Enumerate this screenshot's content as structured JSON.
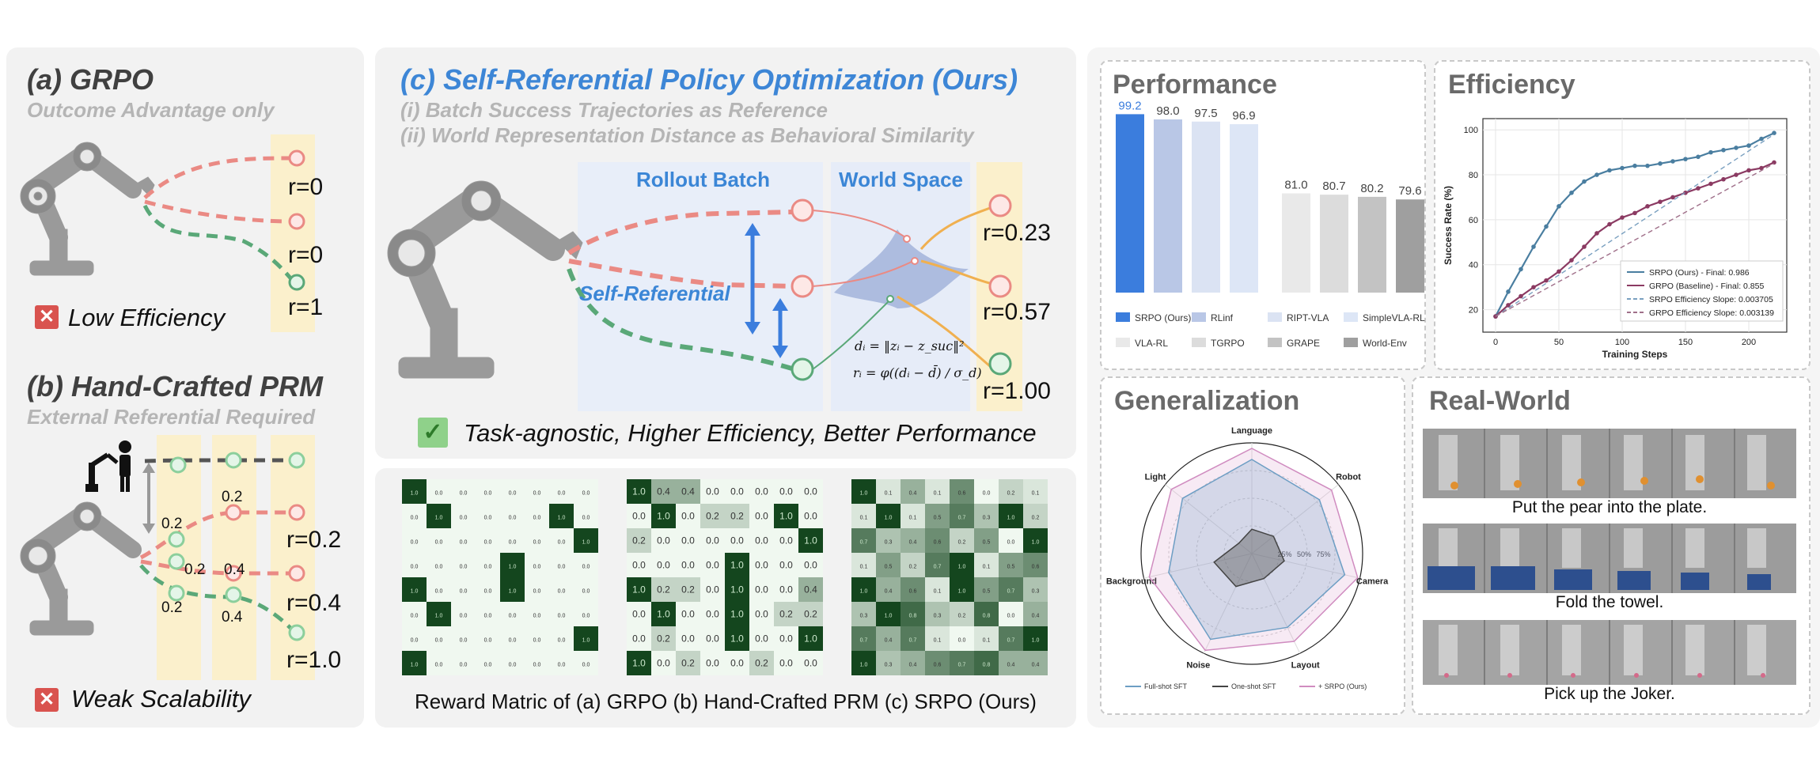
{
  "grpo": {
    "title": "(a) GRPO",
    "subtitle": "Outcome Advantage only",
    "rewards": [
      "r=0",
      "r=0",
      "r=1"
    ],
    "verdict": "Low Efficiency",
    "verdict_icon": "cross-icon"
  },
  "prm": {
    "title": "(b) Hand-Crafted PRM",
    "subtitle": "External Referential Required",
    "step_rewards": [
      "0.2",
      "0.2",
      "0.2",
      "0.4",
      "0.2",
      "0.4"
    ],
    "rewards": [
      "r=0.2",
      "r=0.4",
      "r=1.0"
    ],
    "verdict": "Weak Scalability",
    "verdict_icon": "cross-icon"
  },
  "srpo": {
    "title": "(c) Self-Referential Policy Optimization (Ours)",
    "point1": "(i) Batch Success Trajectories as Reference",
    "point2": "(ii) World Representation Distance as Behavioral Similarity",
    "rollout_label": "Rollout Batch",
    "world_label": "World Space",
    "self_ref_label": "Self-Referential",
    "rewards": [
      "r=0.23",
      "r=0.57",
      "r=1.00"
    ],
    "conclusion": "Task-agnostic, Higher Efficiency, Better Performance",
    "conclusion_icon": "check-icon",
    "formula_line1": "dᵢ = ‖zᵢ − z_suc‖²",
    "formula_line2": "rᵢ = φ((dᵢ − d̄) / σ_d)"
  },
  "matrices": {
    "caption": "Reward Matric of (a) GRPO (b) Hand-Crafted PRM (c) SRPO (Ours)",
    "grpo": [
      [
        "1.0",
        "0.0",
        "0.0",
        "0.0",
        "0.0",
        "0.0",
        "0.0",
        "0.0"
      ],
      [
        "0.0",
        "1.0",
        "0.0",
        "0.0",
        "0.0",
        "0.0",
        "1.0",
        "0.0"
      ],
      [
        "0.0",
        "0.0",
        "0.0",
        "0.0",
        "0.0",
        "0.0",
        "0.0",
        "1.0"
      ],
      [
        "0.0",
        "0.0",
        "0.0",
        "0.0",
        "1.0",
        "0.0",
        "0.0",
        "0.0"
      ],
      [
        "1.0",
        "0.0",
        "0.0",
        "0.0",
        "1.0",
        "0.0",
        "0.0",
        "0.0"
      ],
      [
        "0.0",
        "1.0",
        "0.0",
        "0.0",
        "0.0",
        "0.0",
        "0.0",
        "0.0"
      ],
      [
        "0.0",
        "0.0",
        "0.0",
        "0.0",
        "0.0",
        "0.0",
        "0.0",
        "1.0"
      ],
      [
        "1.0",
        "0.0",
        "0.0",
        "0.0",
        "0.0",
        "0.0",
        "0.0",
        "0.0"
      ]
    ],
    "prm": [
      [
        "1.0",
        "0.4",
        "0.4",
        "0.0",
        "0.0",
        "0.0",
        "0.0",
        "0.0"
      ],
      [
        "0.0",
        "1.0",
        "0.0",
        "0.2",
        "0.2",
        "0.0",
        "1.0",
        "0.0"
      ],
      [
        "0.2",
        "0.0",
        "0.0",
        "0.0",
        "0.0",
        "0.0",
        "0.0",
        "1.0"
      ],
      [
        "0.0",
        "0.0",
        "0.0",
        "0.0",
        "1.0",
        "0.0",
        "0.0",
        "0.0"
      ],
      [
        "1.0",
        "0.2",
        "0.2",
        "0.0",
        "1.0",
        "0.0",
        "0.0",
        "0.4"
      ],
      [
        "0.0",
        "1.0",
        "0.0",
        "0.0",
        "1.0",
        "0.0",
        "0.2",
        "0.2"
      ],
      [
        "0.0",
        "0.2",
        "0.0",
        "0.0",
        "1.0",
        "0.0",
        "0.0",
        "1.0"
      ],
      [
        "1.0",
        "0.0",
        "0.2",
        "0.0",
        "0.0",
        "0.2",
        "0.0",
        "0.0"
      ]
    ],
    "srpo": [
      [
        "1.0",
        "0.1",
        "0.4",
        "0.1",
        "0.6",
        "0.0",
        "0.2",
        "0.1"
      ],
      [
        "0.1",
        "1.0",
        "0.1",
        "0.5",
        "0.7",
        "0.3",
        "1.0",
        "0.2"
      ],
      [
        "0.7",
        "0.3",
        "0.4",
        "0.6",
        "0.2",
        "0.5",
        "0.0",
        "1.0"
      ],
      [
        "0.1",
        "0.5",
        "0.2",
        "0.7",
        "1.0",
        "0.1",
        "0.5",
        "0.6"
      ],
      [
        "1.0",
        "0.4",
        "0.6",
        "0.1",
        "1.0",
        "0.5",
        "0.7",
        "0.3"
      ],
      [
        "0.3",
        "1.0",
        "0.8",
        "0.3",
        "0.2",
        "0.8",
        "0.0",
        "0.4"
      ],
      [
        "0.7",
        "0.4",
        "0.7",
        "0.1",
        "0.0",
        "0.1",
        "0.7",
        "1.0"
      ],
      [
        "1.0",
        "0.3",
        "0.4",
        "0.6",
        "0.7",
        "0.8",
        "0.4",
        "0.4"
      ]
    ]
  },
  "performance": {
    "title": "Performance",
    "chart_data": {
      "type": "bar",
      "categories": [
        "SRPO (Ours)",
        "RLinf",
        "RIPT-VLA",
        "SimpleVLA-RL",
        "VLA-RL",
        "TGRPO",
        "GRAPE",
        "World-Env"
      ],
      "values": [
        99.2,
        98.0,
        97.5,
        96.9,
        81.0,
        80.7,
        80.2,
        79.6
      ],
      "value_labels": [
        "99.2",
        "98.0",
        "97.5",
        "96.9",
        "81.0",
        "80.7",
        "80.2",
        "79.6"
      ],
      "colors": [
        "#3b7ddd",
        "#b9c7e6",
        "#dbe3f3",
        "#dde6f6",
        "#e9e9e9",
        "#dcdcdc",
        "#c3c3c3",
        "#9f9f9f"
      ],
      "ylim": [
        60,
        100
      ],
      "legend": [
        "SRPO (Ours)",
        "RLinf",
        "RIPT-VLA",
        "SimpleVLA-RL",
        "VLA-RL",
        "TGRPO",
        "GRAPE",
        "World-Env"
      ]
    }
  },
  "efficiency": {
    "title": "Efficiency",
    "chart_data": {
      "type": "line",
      "xlabel": "Training Steps",
      "ylabel": "Success Rate (%)",
      "xlim": [
        -10,
        230
      ],
      "ylim": [
        10,
        105
      ],
      "xticks": [
        "0",
        "50",
        "100",
        "150",
        "200"
      ],
      "yticks": [
        "20",
        "40",
        "60",
        "80",
        "100"
      ],
      "series": [
        {
          "name": "SRPO (Ours) - Final: 0.986",
          "color": "#4a7ea0",
          "x": [
            0,
            10,
            20,
            30,
            40,
            50,
            60,
            70,
            80,
            90,
            100,
            110,
            120,
            130,
            140,
            150,
            160,
            170,
            180,
            190,
            200,
            210,
            220
          ],
          "y": [
            17,
            28,
            38,
            48,
            57,
            66,
            72,
            77,
            80,
            82,
            83,
            84,
            84,
            85,
            86,
            87,
            88,
            90,
            91,
            92,
            93,
            96,
            98.6
          ]
        },
        {
          "name": "GRPO (Baseline) - Final: 0.855",
          "color": "#8b3a62",
          "x": [
            0,
            10,
            20,
            30,
            40,
            50,
            60,
            70,
            80,
            90,
            100,
            110,
            120,
            130,
            140,
            150,
            160,
            170,
            180,
            190,
            200,
            210,
            220
          ],
          "y": [
            17,
            22,
            26,
            30,
            33,
            37,
            42,
            48,
            54,
            58,
            61,
            63,
            66,
            68,
            70,
            72,
            74,
            76,
            78,
            80,
            82,
            83,
            85.5
          ]
        },
        {
          "name": "SRPO Efficiency Slope: 0.003705",
          "color": "#7aa0c0",
          "dashed": true,
          "x": [
            0,
            220
          ],
          "y": [
            17,
            98
          ]
        },
        {
          "name": "GRPO Efficiency Slope: 0.003139",
          "color": "#a0708a",
          "dashed": true,
          "x": [
            0,
            220
          ],
          "y": [
            17,
            85
          ]
        }
      ]
    }
  },
  "generalization": {
    "title": "Generalization",
    "chart_data": {
      "type": "radar",
      "axes": [
        "Language",
        "Robot",
        "Camera",
        "Layout",
        "Noise",
        "Background",
        "Light"
      ],
      "rings": [
        "25%",
        "50%",
        "75%"
      ],
      "series": [
        {
          "name": "Full-shot SFT",
          "color": "#6d9ec4",
          "values": [
            0.85,
            0.78,
            0.86,
            0.74,
            0.86,
            0.77,
            0.8
          ]
        },
        {
          "name": "One-shot SFT",
          "color": "#444444",
          "values": [
            0.22,
            0.25,
            0.3,
            0.25,
            0.33,
            0.35,
            0.15
          ]
        },
        {
          "name": "+ SRPO (Ours)",
          "color": "#d08cc0",
          "values": [
            0.95,
            0.92,
            0.98,
            0.88,
            0.97,
            0.95,
            0.93
          ]
        }
      ]
    }
  },
  "realworld": {
    "title": "Real-World",
    "tasks": [
      "Put the pear into the plate.",
      "Fold the towel.",
      "Pick up the Joker."
    ]
  }
}
